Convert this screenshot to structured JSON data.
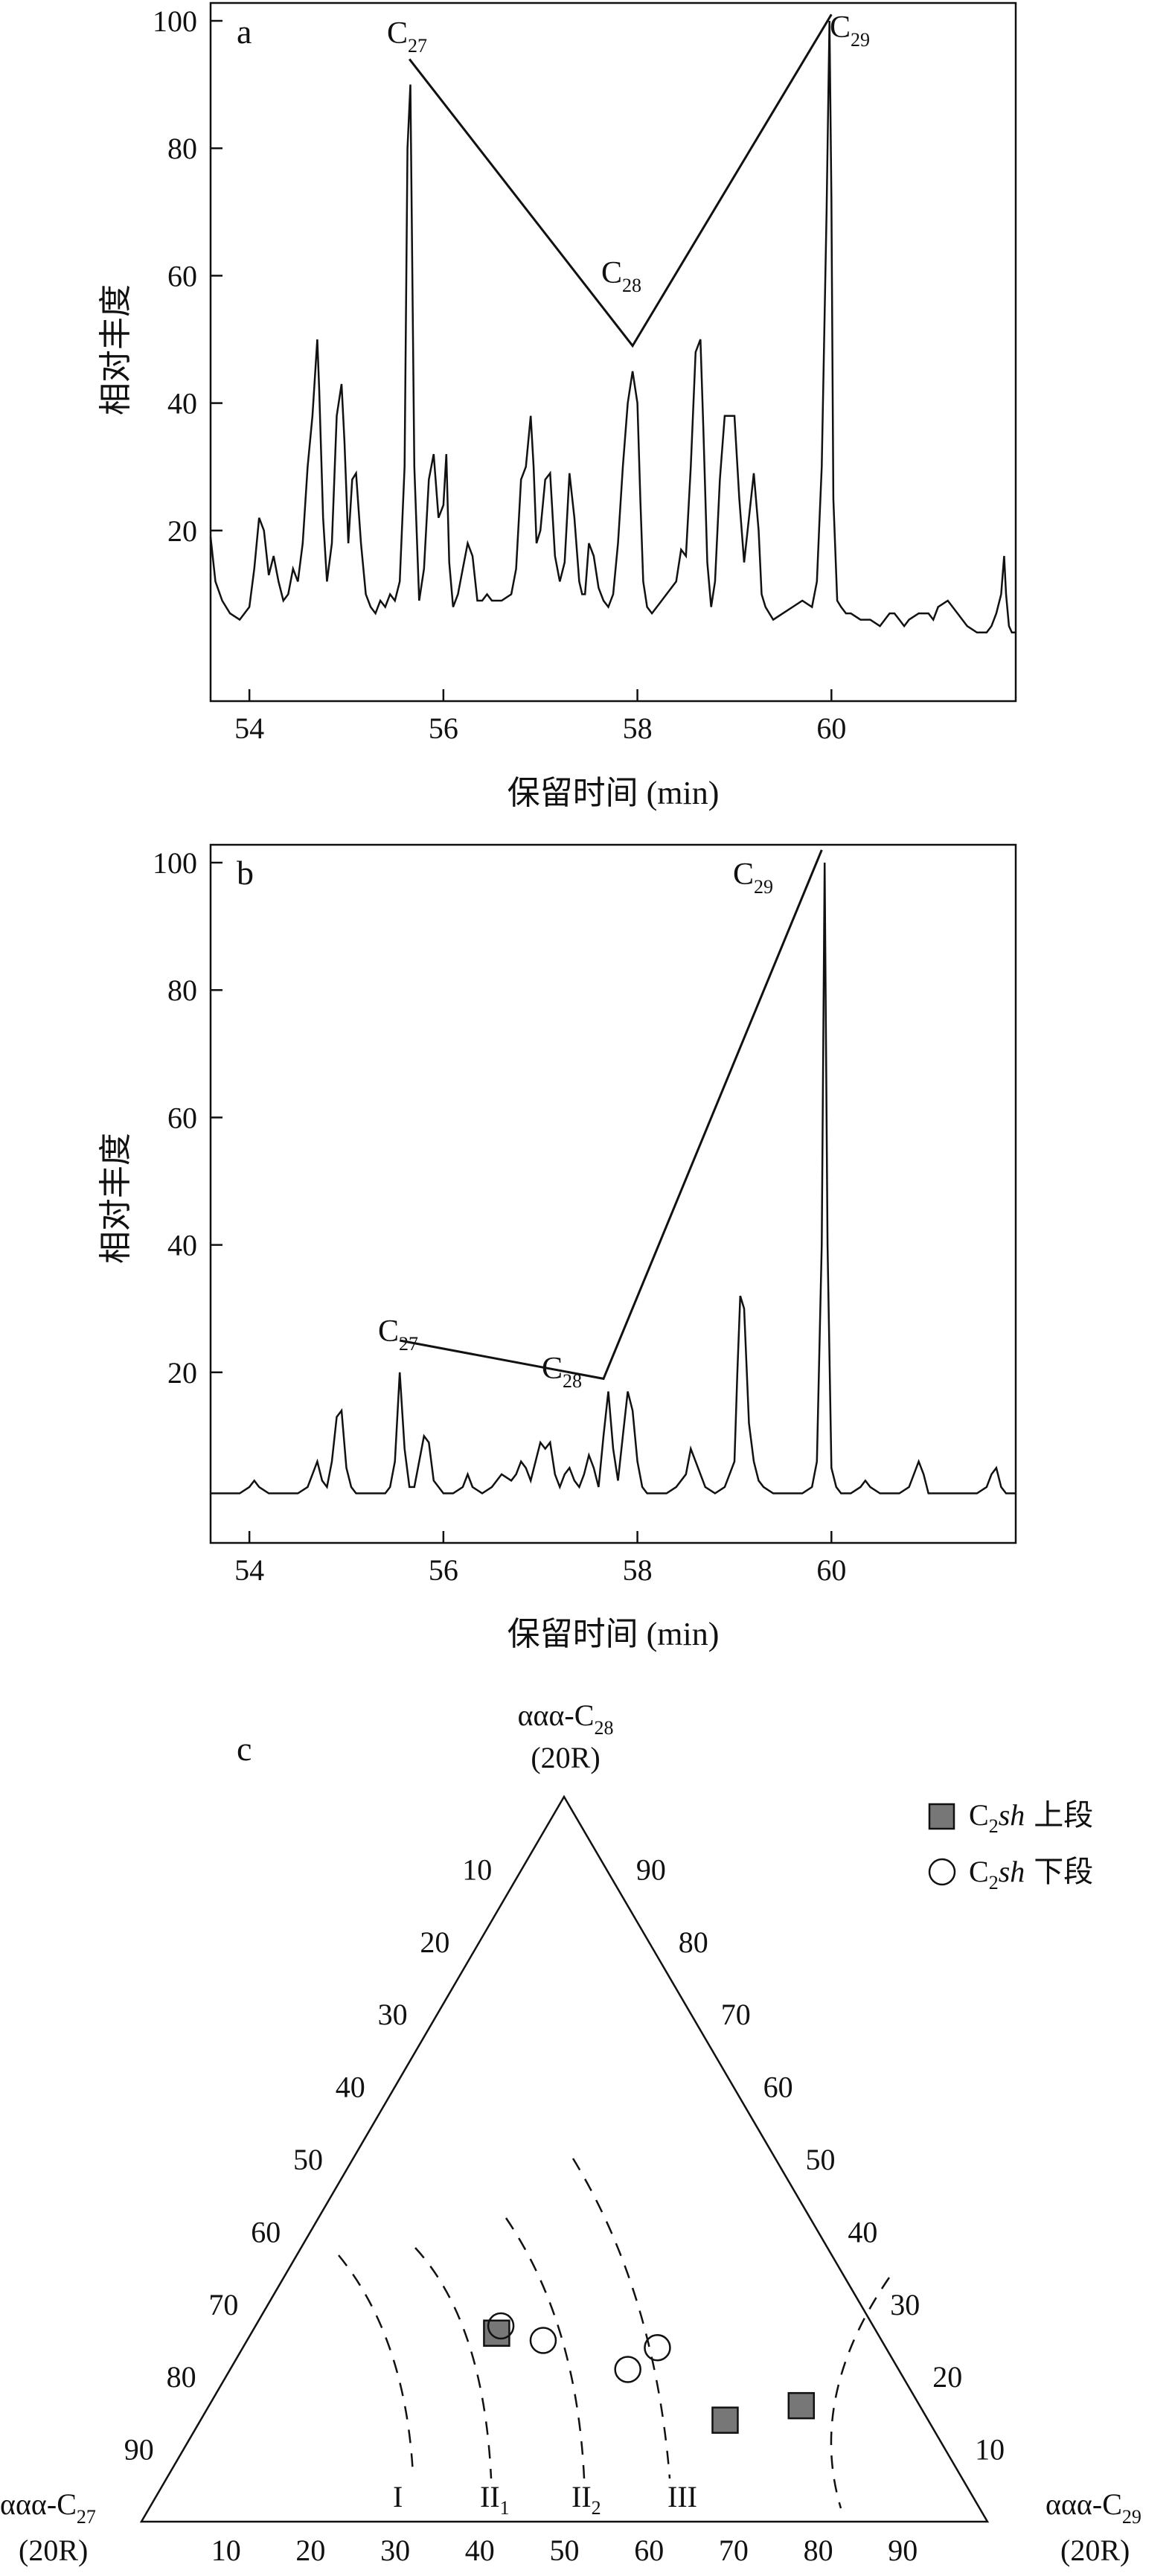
{
  "chart_data": [
    {
      "type": "line",
      "panel_label": "a",
      "xlabel": "保留时间 (min)",
      "ylabel": "相对丰度",
      "xlim": [
        53.6,
        61.9
      ],
      "ylim": [
        0,
        103
      ],
      "xticks": [
        54,
        56,
        58,
        60
      ],
      "yticks": [
        20,
        40,
        60,
        80,
        100
      ],
      "series": [
        {
          "x": [
            53.6,
            53.65,
            53.72,
            53.8,
            53.9,
            54.0,
            54.05,
            54.1,
            54.15,
            54.2,
            54.25,
            54.3,
            54.35,
            54.4,
            54.45,
            54.5,
            54.55,
            54.6,
            54.65,
            54.7,
            54.72,
            54.76,
            54.8,
            54.85,
            54.9,
            54.95,
            54.98,
            55.02,
            55.06,
            55.1,
            55.15,
            55.2,
            55.25,
            55.3,
            55.35,
            55.4,
            55.45,
            55.5,
            55.55,
            55.6,
            55.63,
            55.66,
            55.7,
            55.75,
            55.8,
            55.85,
            55.9,
            55.95,
            56.0,
            56.03,
            56.06,
            56.1,
            56.15,
            56.2,
            56.25,
            56.3,
            56.35,
            56.4,
            56.45,
            56.5,
            56.6,
            56.7,
            56.75,
            56.8,
            56.85,
            56.9,
            56.93,
            56.96,
            57.0,
            57.05,
            57.1,
            57.15,
            57.2,
            57.25,
            57.3,
            57.35,
            57.4,
            57.43,
            57.46,
            57.5,
            57.55,
            57.6,
            57.65,
            57.7,
            57.75,
            57.8,
            57.85,
            57.9,
            57.95,
            58.0,
            58.03,
            58.06,
            58.1,
            58.15,
            58.2,
            58.3,
            58.4,
            58.45,
            58.5,
            58.55,
            58.6,
            58.65,
            58.68,
            58.72,
            58.76,
            58.8,
            58.85,
            58.9,
            59.0,
            59.05,
            59.1,
            59.15,
            59.2,
            59.25,
            59.28,
            59.32,
            59.36,
            59.4,
            59.5,
            59.6,
            59.7,
            59.8,
            59.85,
            59.9,
            59.95,
            59.98,
            60.0,
            60.02,
            60.06,
            60.1,
            60.15,
            60.2,
            60.3,
            60.4,
            60.5,
            60.55,
            60.6,
            60.65,
            60.7,
            60.75,
            60.8,
            60.9,
            61.0,
            61.05,
            61.1,
            61.2,
            61.3,
            61.4,
            61.5,
            61.6,
            61.65,
            61.7,
            61.75,
            61.78,
            61.8,
            61.83,
            61.86,
            61.9
          ],
          "values": [
            19,
            12,
            9,
            7,
            6,
            8,
            14,
            22,
            20,
            13,
            16,
            12,
            9,
            10,
            14,
            12,
            18,
            30,
            38,
            50,
            42,
            22,
            12,
            18,
            38,
            43,
            34,
            18,
            28,
            29,
            18,
            10,
            8,
            7,
            9,
            8,
            10,
            9,
            12,
            30,
            80,
            90,
            30,
            9,
            14,
            28,
            32,
            22,
            24,
            32,
            15,
            8,
            10,
            14,
            18,
            16,
            9,
            9,
            10,
            9,
            9,
            10,
            14,
            28,
            30,
            38,
            30,
            18,
            20,
            28,
            29,
            16,
            12,
            15,
            29,
            22,
            12,
            10,
            10,
            18,
            16,
            11,
            9,
            8,
            10,
            18,
            30,
            40,
            45,
            40,
            25,
            12,
            8,
            7,
            8,
            10,
            12,
            17,
            16,
            30,
            48,
            50,
            36,
            15,
            8,
            12,
            28,
            38,
            38,
            25,
            15,
            22,
            29,
            20,
            10,
            8,
            7,
            6,
            7,
            8,
            9,
            8,
            12,
            30,
            70,
            100,
            72,
            25,
            9,
            8,
            7,
            7,
            6,
            6,
            5,
            6,
            7,
            7,
            6,
            5,
            6,
            7,
            7,
            6,
            8,
            9,
            7,
            5,
            4,
            4,
            5,
            7,
            10,
            16,
            10,
            5,
            4,
            4
          ]
        }
      ],
      "annotations": {
        "C27": {
          "x": 55.65,
          "y": 94,
          "label": "C",
          "sub": "27"
        },
        "C28": {
          "x": 57.95,
          "y": 49,
          "label": "C",
          "sub": "28"
        },
        "C29": {
          "x": 60.0,
          "y": 101,
          "label": "C",
          "sub": "29"
        }
      }
    },
    {
      "type": "line",
      "panel_label": "b",
      "xlabel": "保留时间 (min)",
      "ylabel": "相对丰度",
      "xlim": [
        53.6,
        61.9
      ],
      "ylim": [
        0,
        103
      ],
      "xticks": [
        54,
        56,
        58,
        60
      ],
      "yticks": [
        20,
        40,
        60,
        80,
        100
      ],
      "series": [
        {
          "x": [
            53.6,
            53.8,
            53.9,
            54.0,
            54.05,
            54.1,
            54.2,
            54.3,
            54.4,
            54.5,
            54.6,
            54.65,
            54.7,
            54.75,
            54.8,
            54.85,
            54.9,
            54.95,
            55.0,
            55.05,
            55.1,
            55.2,
            55.3,
            55.4,
            55.45,
            55.5,
            55.55,
            55.6,
            55.65,
            55.7,
            55.75,
            55.8,
            55.85,
            55.9,
            56.0,
            56.1,
            56.2,
            56.25,
            56.3,
            56.4,
            56.5,
            56.6,
            56.7,
            56.75,
            56.8,
            56.85,
            56.9,
            56.95,
            57.0,
            57.05,
            57.1,
            57.15,
            57.2,
            57.25,
            57.3,
            57.35,
            57.4,
            57.45,
            57.5,
            57.55,
            57.6,
            57.65,
            57.7,
            57.75,
            57.8,
            57.85,
            57.9,
            57.95,
            58.0,
            58.05,
            58.1,
            58.2,
            58.3,
            58.4,
            58.5,
            58.55,
            58.6,
            58.7,
            58.8,
            58.9,
            59.0,
            59.03,
            59.06,
            59.1,
            59.15,
            59.2,
            59.25,
            59.3,
            59.4,
            59.5,
            59.6,
            59.7,
            59.8,
            59.85,
            59.9,
            59.93,
            59.96,
            60.0,
            60.05,
            60.1,
            60.2,
            60.3,
            60.35,
            60.4,
            60.5,
            60.6,
            60.7,
            60.8,
            60.85,
            60.9,
            60.95,
            61.0,
            61.1,
            61.2,
            61.3,
            61.4,
            61.5,
            61.6,
            61.65,
            61.7,
            61.75,
            61.8,
            61.9
          ],
          "values": [
            1,
            1,
            1,
            2,
            3,
            2,
            1,
            1,
            1,
            1,
            2,
            4,
            6,
            3,
            2,
            6,
            13,
            14,
            5,
            2,
            1,
            1,
            1,
            1,
            2,
            6,
            20,
            8,
            2,
            2,
            6,
            10,
            9,
            3,
            1,
            1,
            2,
            4,
            2,
            1,
            2,
            4,
            3,
            4,
            6,
            5,
            3,
            6,
            9,
            8,
            9,
            4,
            2,
            4,
            5,
            3,
            2,
            4,
            7,
            5,
            2,
            10,
            17,
            8,
            3,
            10,
            17,
            14,
            6,
            2,
            1,
            1,
            1,
            2,
            4,
            8,
            6,
            2,
            1,
            2,
            6,
            20,
            32,
            30,
            12,
            6,
            3,
            2,
            1,
            1,
            1,
            1,
            2,
            6,
            40,
            100,
            40,
            5,
            2,
            1,
            1,
            2,
            3,
            2,
            1,
            1,
            1,
            2,
            4,
            6,
            4,
            1,
            1,
            1,
            1,
            1,
            1,
            2,
            4,
            5,
            2,
            1,
            1
          ]
        }
      ],
      "annotations": {
        "C27": {
          "x": 55.55,
          "y": 25,
          "label": "C",
          "sub": "27"
        },
        "C28": {
          "x": 57.65,
          "y": 19,
          "label": "C",
          "sub": "28"
        },
        "C29": {
          "x": 59.9,
          "y": 102,
          "label": "C",
          "sub": "29"
        }
      }
    },
    {
      "type": "scatter",
      "panel_label": "c",
      "subtype": "ternary",
      "apex_top": {
        "line1": "ααα-C",
        "sub": "28",
        "line2": "(20R)"
      },
      "apex_left": {
        "line1": "ααα-C",
        "sub": "27",
        "line2": "(20R)"
      },
      "apex_right": {
        "line1": "ααα-C",
        "sub": "29",
        "line2": "(20R)"
      },
      "ticks_left_side": [
        "10",
        "20",
        "30",
        "40",
        "50",
        "60",
        "70",
        "80",
        "90"
      ],
      "ticks_right_side": [
        "90",
        "80",
        "70",
        "60",
        "50",
        "40",
        "30",
        "20",
        "10"
      ],
      "ticks_bottom": [
        "10",
        "20",
        "30",
        "40",
        "50",
        "60",
        "70",
        "80",
        "90"
      ],
      "zones": [
        "I",
        "II",
        "II",
        "III"
      ],
      "zone_subs": [
        "",
        "1",
        "2",
        ""
      ],
      "legend": [
        {
          "marker": "square",
          "label_main": "C",
          "label_sub": "2",
          "label_italic": "sh",
          "label_tail": "上段"
        },
        {
          "marker": "circle",
          "label_main": "C",
          "label_sub": "2",
          "label_italic": "sh",
          "label_tail": "下段"
        }
      ],
      "upper_points": [
        {
          "c27": 45,
          "c28": 26,
          "c29": 29
        },
        {
          "c27": 24,
          "c28": 14,
          "c29": 62
        },
        {
          "c27": 14,
          "c28": 16,
          "c29": 70
        }
      ],
      "lower_points": [
        {
          "c27": 44,
          "c28": 27,
          "c29": 29
        },
        {
          "c27": 40,
          "c28": 25,
          "c29": 35
        },
        {
          "c27": 32,
          "c28": 21,
          "c29": 47
        },
        {
          "c27": 27,
          "c28": 24,
          "c29": 49
        }
      ]
    }
  ]
}
